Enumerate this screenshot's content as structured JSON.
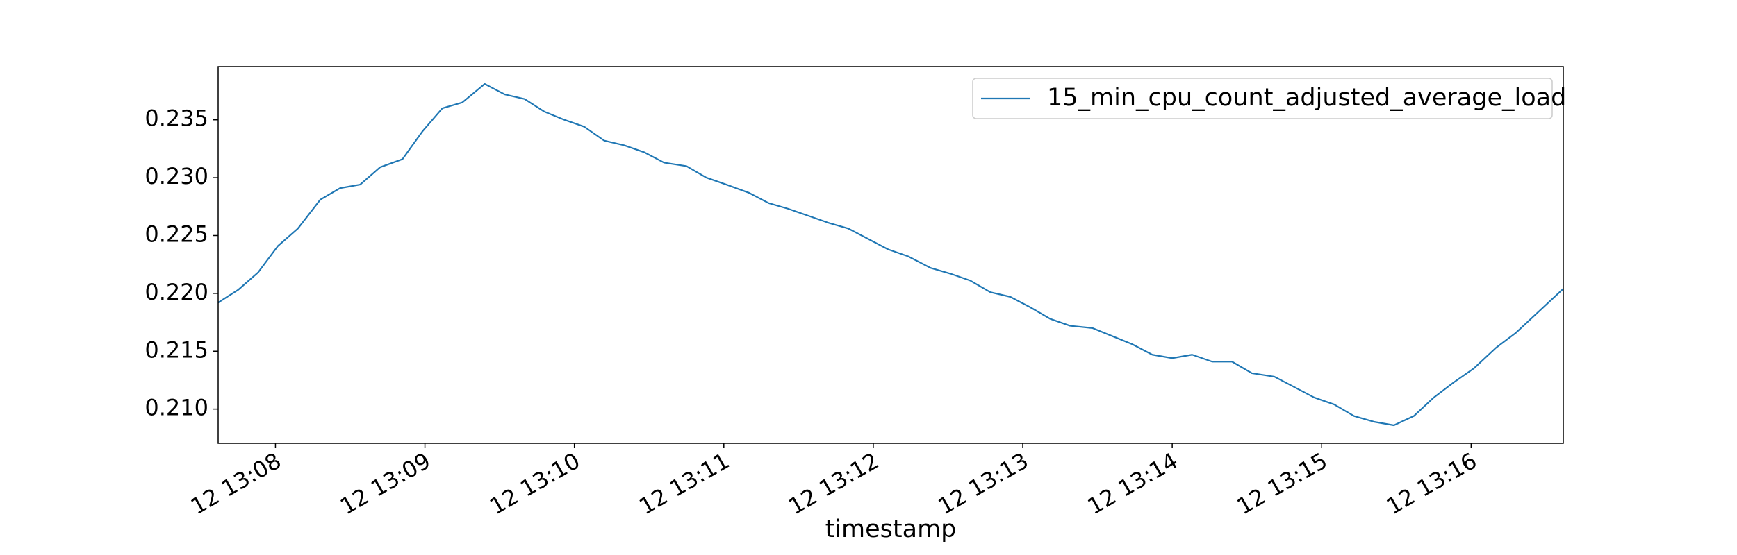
{
  "chart_data": {
    "type": "line",
    "xlabel": "timestamp",
    "x": [
      "12 13:07:37",
      "12 13:07:45",
      "12 13:07:53",
      "12 13:08:01",
      "12 13:08:09",
      "12 13:08:18",
      "12 13:08:26",
      "12 13:08:34",
      "12 13:08:42",
      "12 13:08:51",
      "12 13:08:59",
      "12 13:09:07",
      "12 13:09:15",
      "12 13:09:24",
      "12 13:09:32",
      "12 13:09:40",
      "12 13:09:48",
      "12 13:09:56",
      "12 13:10:04",
      "12 13:10:12",
      "12 13:10:20",
      "12 13:10:28",
      "12 13:10:36",
      "12 13:10:45",
      "12 13:10:53",
      "12 13:11:01",
      "12 13:11:10",
      "12 13:11:18",
      "12 13:11:26",
      "12 13:11:34",
      "12 13:11:42",
      "12 13:11:50",
      "12 13:11:58",
      "12 13:12:06",
      "12 13:12:14",
      "12 13:12:23",
      "12 13:12:31",
      "12 13:12:39",
      "12 13:12:47",
      "12 13:12:55",
      "12 13:13:03",
      "12 13:13:11",
      "12 13:13:19",
      "12 13:13:28",
      "12 13:13:36",
      "12 13:13:44",
      "12 13:13:52",
      "12 13:14:00",
      "12 13:14:08",
      "12 13:14:16",
      "12 13:14:24",
      "12 13:14:32",
      "12 13:14:41",
      "12 13:14:49",
      "12 13:14:57",
      "12 13:15:05",
      "12 13:15:13",
      "12 13:15:21",
      "12 13:15:29",
      "12 13:15:37",
      "12 13:15:45",
      "12 13:15:53",
      "12 13:16:01",
      "12 13:16:10",
      "12 13:16:18",
      "12 13:16:27",
      "12 13:16:37"
    ],
    "series": [
      {
        "name": "15_min_cpu_count_adjusted_average_load",
        "color": "#1f77b4",
        "values": [
          0.2192,
          0.2203,
          0.2218,
          0.2241,
          0.2256,
          0.2281,
          0.2291,
          0.2294,
          0.2309,
          0.2316,
          0.234,
          0.236,
          0.2365,
          0.2381,
          0.2372,
          0.2368,
          0.2357,
          0.235,
          0.2344,
          0.2332,
          0.2328,
          0.2322,
          0.2313,
          0.231,
          0.23,
          0.2294,
          0.2287,
          0.2278,
          0.2273,
          0.2267,
          0.2261,
          0.2256,
          0.2247,
          0.2238,
          0.2232,
          0.2222,
          0.2217,
          0.2211,
          0.2201,
          0.2197,
          0.2188,
          0.2178,
          0.2172,
          0.217,
          0.2163,
          0.2156,
          0.2147,
          0.2144,
          0.2147,
          0.2141,
          0.2141,
          0.2131,
          0.2128,
          0.2119,
          0.211,
          0.2104,
          0.2094,
          0.2089,
          0.2086,
          0.2094,
          0.211,
          0.2123,
          0.2135,
          0.2153,
          0.2166,
          0.2184,
          0.2204
        ]
      }
    ],
    "xlim": [
      "12 13:07:37",
      "12 13:16:37"
    ],
    "xticks": [
      "12 13:08",
      "12 13:09",
      "12 13:10",
      "12 13:11",
      "12 13:12",
      "12 13:13",
      "12 13:14",
      "12 13:15",
      "12 13:16"
    ],
    "ylim": [
      0.20704,
      0.2396
    ],
    "yticks": [
      {
        "value": 0.21,
        "label": "0.210"
      },
      0.215,
      {
        "value": 0.22,
        "label": "0.220"
      },
      0.225,
      {
        "value": 0.23,
        "label": "0.230"
      },
      0.235
    ],
    "legend": "upper right"
  }
}
